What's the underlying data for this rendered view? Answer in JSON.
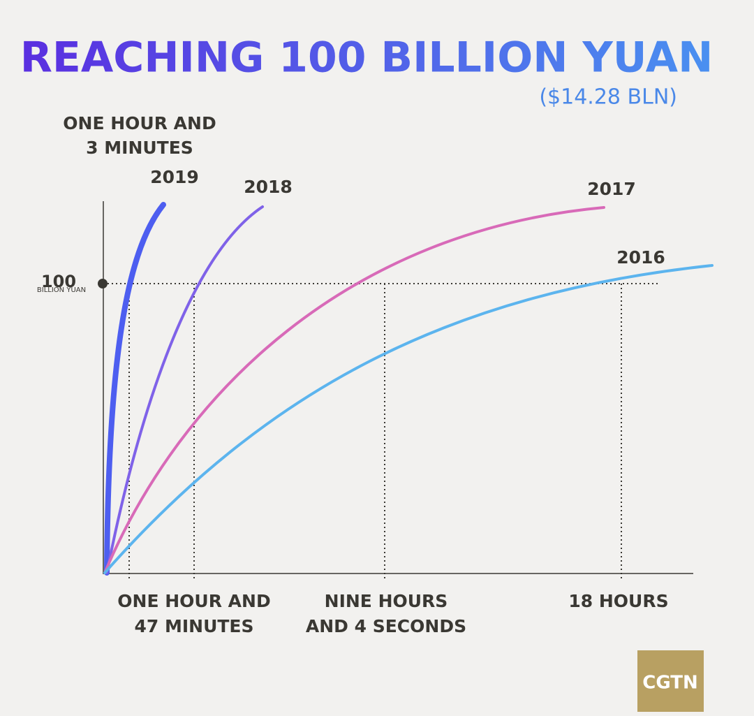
{
  "chart_data": {
    "type": "line",
    "title": "REACHING 100 BILLION YUAN",
    "subtitle": "($14.28 BLN)",
    "yticks": [
      100
    ],
    "ylabel": "BILLION YUAN",
    "series": [
      {
        "name": "2019",
        "color": "#4d5ef0",
        "note": [
          "ONE HOUR AND",
          "3 MINUTES"
        ]
      },
      {
        "name": "2018",
        "color": "#7f62e8"
      },
      {
        "name": "2017",
        "color": "#d86ab8"
      },
      {
        "name": "2016",
        "color": "#5cb4ee"
      }
    ],
    "x_labels": [
      [
        "ONE HOUR AND",
        "47 MINUTES"
      ],
      [
        "NINE HOURS",
        "AND 4 SECONDS"
      ],
      [
        "18 HOURS"
      ]
    ],
    "logo": "CGTN"
  }
}
